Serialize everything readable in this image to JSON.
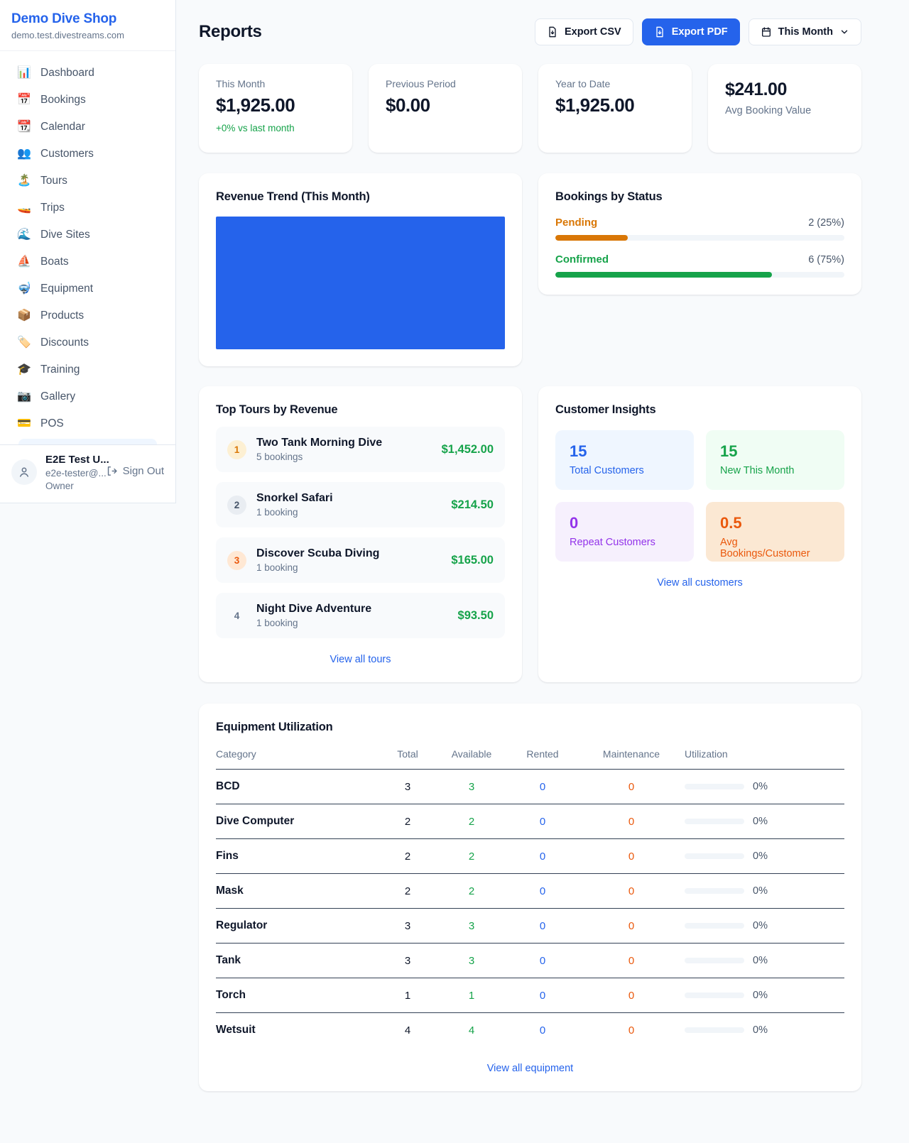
{
  "colors": {
    "brand_blue": "#2563eb",
    "chart_fill": "#2563eb",
    "green": "#16a34a",
    "amber": "#d97706",
    "bronze_orange": "#ea580c",
    "purple": "#9333ea"
  },
  "sidebar": {
    "brand": {
      "name": "Demo Dive Shop",
      "domain": "demo.test.divestreams.com"
    },
    "nav": [
      {
        "icon": "📊",
        "label": "Dashboard"
      },
      {
        "icon": "📅",
        "label": "Bookings"
      },
      {
        "icon": "📆",
        "label": "Calendar"
      },
      {
        "icon": "👥",
        "label": "Customers"
      },
      {
        "icon": "🏝️",
        "label": "Tours"
      },
      {
        "icon": "🚤",
        "label": "Trips"
      },
      {
        "icon": "🌊",
        "label": "Dive Sites"
      },
      {
        "icon": "⛵",
        "label": "Boats"
      },
      {
        "icon": "🤿",
        "label": "Equipment"
      },
      {
        "icon": "📦",
        "label": "Products"
      },
      {
        "icon": "🏷️",
        "label": "Discounts"
      },
      {
        "icon": "🎓",
        "label": "Training"
      },
      {
        "icon": "📷",
        "label": "Gallery"
      },
      {
        "icon": "💳",
        "label": "POS"
      }
    ],
    "user": {
      "name": "E2E Test U...",
      "email": "e2e-tester@...",
      "role": "Owner",
      "sign_out": "Sign Out"
    }
  },
  "header": {
    "title": "Reports",
    "export_csv": "Export CSV",
    "export_pdf": "Export PDF",
    "period": "This Month"
  },
  "stats": [
    {
      "label": "This Month",
      "value": "$1,925.00",
      "delta": "+0% vs last month"
    },
    {
      "label": "Previous Period",
      "value": "$0.00"
    },
    {
      "label": "Year to Date",
      "value": "$1,925.00"
    },
    {
      "label": "Avg Booking Value",
      "value": "$241.00"
    }
  ],
  "revenue_trend": {
    "title": "Revenue Trend (This Month)",
    "rendering": "solid filled block, no visible axes or points",
    "fill_color": "#2563eb"
  },
  "bookings_by_status": {
    "title": "Bookings by Status",
    "rows": [
      {
        "label": "Pending",
        "count_text": "2 (25%)",
        "pct": 25,
        "color": "#d97706"
      },
      {
        "label": "Confirmed",
        "count_text": "6 (75%)",
        "pct": 75,
        "color": "#16a34a"
      }
    ]
  },
  "top_tours": {
    "title": "Top Tours by Revenue",
    "rows": [
      {
        "rank": "1",
        "name": "Two Tank Morning Dive",
        "bookings": "5 bookings",
        "amount": "$1,452.00"
      },
      {
        "rank": "2",
        "name": "Snorkel Safari",
        "bookings": "1 booking",
        "amount": "$214.50"
      },
      {
        "rank": "3",
        "name": "Discover Scuba Diving",
        "bookings": "1 booking",
        "amount": "$165.00"
      },
      {
        "rank": "4",
        "name": "Night Dive Adventure",
        "bookings": "1 booking",
        "amount": "$93.50"
      }
    ],
    "view_all": "View all tours"
  },
  "customer_insights": {
    "title": "Customer Insights",
    "tiles": [
      {
        "value": "15",
        "label": "Total Customers",
        "color": "#2563eb"
      },
      {
        "value": "15",
        "label": "New This Month",
        "color": "#16a34a"
      },
      {
        "value": "0",
        "label": "Repeat Customers",
        "color": "#9333ea"
      },
      {
        "value": "0.5",
        "label": "Avg Bookings/Customer",
        "color": "#ea580c"
      }
    ],
    "view_all": "View all customers"
  },
  "equipment": {
    "title": "Equipment Utilization",
    "columns": [
      "Category",
      "Total",
      "Available",
      "Rented",
      "Maintenance",
      "Utilization"
    ],
    "rows": [
      {
        "category": "BCD",
        "total": "3",
        "available": "3",
        "rented": "0",
        "maintenance": "0",
        "utilization": "0%",
        "utilization_pct": 0
      },
      {
        "category": "Dive Computer",
        "total": "2",
        "available": "2",
        "rented": "0",
        "maintenance": "0",
        "utilization": "0%",
        "utilization_pct": 0
      },
      {
        "category": "Fins",
        "total": "2",
        "available": "2",
        "rented": "0",
        "maintenance": "0",
        "utilization": "0%",
        "utilization_pct": 0
      },
      {
        "category": "Mask",
        "total": "2",
        "available": "2",
        "rented": "0",
        "maintenance": "0",
        "utilization": "0%",
        "utilization_pct": 0
      },
      {
        "category": "Regulator",
        "total": "3",
        "available": "3",
        "rented": "0",
        "maintenance": "0",
        "utilization": "0%",
        "utilization_pct": 0
      },
      {
        "category": "Tank",
        "total": "3",
        "available": "3",
        "rented": "0",
        "maintenance": "0",
        "utilization": "0%",
        "utilization_pct": 0
      },
      {
        "category": "Torch",
        "total": "1",
        "available": "1",
        "rented": "0",
        "maintenance": "0",
        "utilization": "0%",
        "utilization_pct": 0
      },
      {
        "category": "Wetsuit",
        "total": "4",
        "available": "4",
        "rented": "0",
        "maintenance": "0",
        "utilization": "0%",
        "utilization_pct": 0
      }
    ],
    "view_all": "View all equipment"
  }
}
